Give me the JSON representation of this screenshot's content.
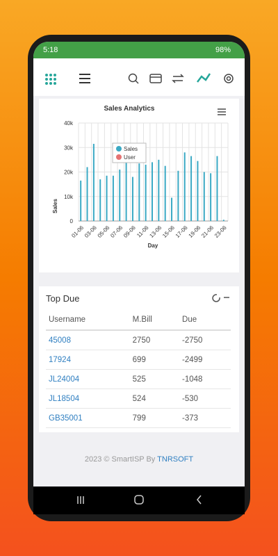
{
  "status_bar": {
    "time": "5:18",
    "battery": "98%"
  },
  "chart_data": {
    "type": "bar",
    "title": "Sales Analytics",
    "x_label": "Day",
    "y_label": "Sales",
    "categories": [
      "01-06",
      null,
      "03-06",
      null,
      "05-06",
      null,
      "07-06",
      null,
      "09-06",
      null,
      "11-06",
      null,
      "13-06",
      null,
      "15-06",
      null,
      "17-06",
      null,
      "19-06",
      null,
      "21-06",
      null,
      "23-06"
    ],
    "series": [
      {
        "name": "Sales",
        "color": "#3aa9c4",
        "values": [
          16500,
          22000,
          31500,
          17000,
          18500,
          18500,
          21000,
          25000,
          18000,
          23500,
          23000,
          24000,
          25000,
          22500,
          9500,
          20500,
          28000,
          26500,
          24500,
          20000,
          19500,
          26500,
          500
        ]
      },
      {
        "name": "User",
        "color": "#e57373",
        "values": [
          null,
          null,
          null,
          null,
          null,
          null,
          null,
          null,
          null,
          null,
          null,
          null,
          null,
          null,
          null,
          null,
          null,
          null,
          null,
          null,
          null,
          null,
          null
        ]
      }
    ],
    "ylim": [
      0,
      40000
    ],
    "yticks": [
      0,
      {
        "value": 10000,
        "label": "10k"
      },
      {
        "value": 20000,
        "label": "20k"
      },
      {
        "value": 30000,
        "label": "30k"
      },
      {
        "value": 40000,
        "label": "40k"
      }
    ],
    "grid": true,
    "legend_position": "upper-left"
  },
  "top_due": {
    "title": "Top Due",
    "columns": [
      "Username",
      "M.Bill",
      "Due"
    ],
    "rows": [
      [
        "45008",
        2750,
        -2750
      ],
      [
        "17924",
        699,
        -2499
      ],
      [
        "JL24004",
        525,
        -1048
      ],
      [
        "JL18504",
        524,
        -530
      ],
      [
        "GB35001",
        799,
        -373
      ]
    ]
  },
  "footer": {
    "text": "2023 © SmartISP By",
    "link": "TNRSOFT"
  }
}
